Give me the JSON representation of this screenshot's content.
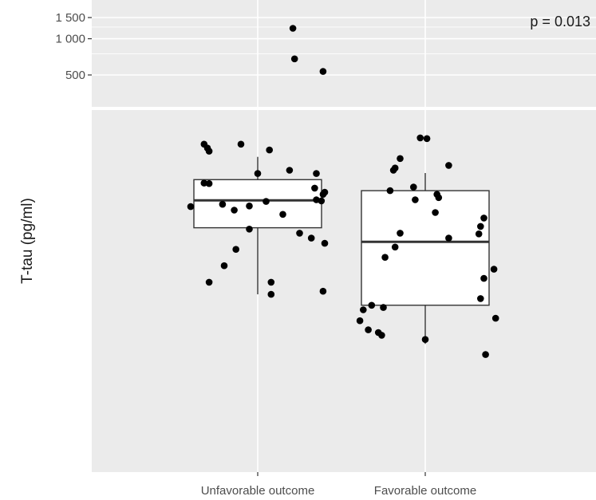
{
  "chart_data": {
    "type": "box",
    "title": "",
    "ylabel": "T-tau (pg/ml)",
    "xlabel": "",
    "categories": [
      "Unfavorable outcome",
      "Favorable outcome"
    ],
    "annotation": "p = 0.013",
    "y_scale": "log",
    "y_ticks": [
      500,
      1000,
      1500
    ],
    "y_tick_labels": [
      "500",
      "1 000",
      "1 500"
    ],
    "colors": {
      "panel": "#ebebeb",
      "grid": "#ffffff",
      "box_fill": "#ffffff",
      "box_line": "#333333",
      "points": "#000000"
    },
    "boxes": [
      {
        "category": "Unfavorable outcome",
        "lower_whisker": 140,
        "q1": 220,
        "median": 265,
        "q3": 305,
        "upper_whisker": 356
      },
      {
        "category": "Favorable outcome",
        "lower_whisker": 100,
        "q1": 130,
        "median": 200,
        "q3": 283,
        "upper_whisker": 319
      }
    ],
    "points": [
      {
        "category": "Unfavorable outcome",
        "y": 1220,
        "jitter": 0.21
      },
      {
        "category": "Unfavorable outcome",
        "y": 680,
        "jitter": 0.22
      },
      {
        "category": "Unfavorable outcome",
        "y": 535,
        "jitter": 0.39
      },
      {
        "category": "Unfavorable outcome",
        "y": 388,
        "jitter": -0.32
      },
      {
        "category": "Unfavorable outcome",
        "y": 378,
        "jitter": -0.3
      },
      {
        "category": "Unfavorable outcome",
        "y": 370,
        "jitter": -0.29
      },
      {
        "category": "Unfavorable outcome",
        "y": 388,
        "jitter": -0.1
      },
      {
        "category": "Unfavorable outcome",
        "y": 373,
        "jitter": 0.07
      },
      {
        "category": "Unfavorable outcome",
        "y": 325,
        "jitter": 0.19
      },
      {
        "category": "Unfavorable outcome",
        "y": 318,
        "jitter": 0.0
      },
      {
        "category": "Unfavorable outcome",
        "y": 298,
        "jitter": -0.32
      },
      {
        "category": "Unfavorable outcome",
        "y": 297,
        "jitter": -0.29
      },
      {
        "category": "Unfavorable outcome",
        "y": 318,
        "jitter": 0.35
      },
      {
        "category": "Unfavorable outcome",
        "y": 288,
        "jitter": 0.34
      },
      {
        "category": "Unfavorable outcome",
        "y": 280,
        "jitter": 0.4
      },
      {
        "category": "Unfavorable outcome",
        "y": 276,
        "jitter": 0.39
      },
      {
        "category": "Unfavorable outcome",
        "y": 266,
        "jitter": 0.35
      },
      {
        "category": "Unfavorable outcome",
        "y": 264,
        "jitter": 0.38
      },
      {
        "category": "Unfavorable outcome",
        "y": 263,
        "jitter": 0.05
      },
      {
        "category": "Unfavorable outcome",
        "y": 258,
        "jitter": -0.21
      },
      {
        "category": "Unfavorable outcome",
        "y": 255,
        "jitter": -0.05
      },
      {
        "category": "Unfavorable outcome",
        "y": 254,
        "jitter": -0.4
      },
      {
        "category": "Unfavorable outcome",
        "y": 248,
        "jitter": -0.14
      },
      {
        "category": "Unfavorable outcome",
        "y": 241,
        "jitter": 0.15
      },
      {
        "category": "Unfavorable outcome",
        "y": 218,
        "jitter": -0.05
      },
      {
        "category": "Unfavorable outcome",
        "y": 212,
        "jitter": 0.25
      },
      {
        "category": "Unfavorable outcome",
        "y": 205,
        "jitter": 0.32
      },
      {
        "category": "Unfavorable outcome",
        "y": 198,
        "jitter": 0.4
      },
      {
        "category": "Unfavorable outcome",
        "y": 190,
        "jitter": -0.13
      },
      {
        "category": "Unfavorable outcome",
        "y": 170,
        "jitter": -0.2
      },
      {
        "category": "Unfavorable outcome",
        "y": 152,
        "jitter": -0.29
      },
      {
        "category": "Unfavorable outcome",
        "y": 152,
        "jitter": 0.08
      },
      {
        "category": "Unfavorable outcome",
        "y": 143,
        "jitter": 0.39
      },
      {
        "category": "Unfavorable outcome",
        "y": 140,
        "jitter": 0.08
      },
      {
        "category": "Favorable outcome",
        "y": 405,
        "jitter": -0.03
      },
      {
        "category": "Favorable outcome",
        "y": 403,
        "jitter": 0.01
      },
      {
        "category": "Favorable outcome",
        "y": 352,
        "jitter": -0.15
      },
      {
        "category": "Favorable outcome",
        "y": 336,
        "jitter": 0.14
      },
      {
        "category": "Favorable outcome",
        "y": 330,
        "jitter": -0.18
      },
      {
        "category": "Favorable outcome",
        "y": 325,
        "jitter": -0.19
      },
      {
        "category": "Favorable outcome",
        "y": 290,
        "jitter": -0.07
      },
      {
        "category": "Favorable outcome",
        "y": 283,
        "jitter": -0.21
      },
      {
        "category": "Favorable outcome",
        "y": 276,
        "jitter": 0.07
      },
      {
        "category": "Favorable outcome",
        "y": 270,
        "jitter": 0.08
      },
      {
        "category": "Favorable outcome",
        "y": 266,
        "jitter": -0.06
      },
      {
        "category": "Favorable outcome",
        "y": 244,
        "jitter": 0.06
      },
      {
        "category": "Favorable outcome",
        "y": 235,
        "jitter": 0.35
      },
      {
        "category": "Favorable outcome",
        "y": 222,
        "jitter": 0.33
      },
      {
        "category": "Favorable outcome",
        "y": 212,
        "jitter": -0.15
      },
      {
        "category": "Favorable outcome",
        "y": 211,
        "jitter": 0.32
      },
      {
        "category": "Favorable outcome",
        "y": 205,
        "jitter": 0.14
      },
      {
        "category": "Favorable outcome",
        "y": 193,
        "jitter": -0.18
      },
      {
        "category": "Favorable outcome",
        "y": 180,
        "jitter": -0.24
      },
      {
        "category": "Favorable outcome",
        "y": 166,
        "jitter": 0.41
      },
      {
        "category": "Favorable outcome",
        "y": 156,
        "jitter": 0.35
      },
      {
        "category": "Favorable outcome",
        "y": 136,
        "jitter": 0.33
      },
      {
        "category": "Favorable outcome",
        "y": 130,
        "jitter": -0.32
      },
      {
        "category": "Favorable outcome",
        "y": 128,
        "jitter": -0.25
      },
      {
        "category": "Favorable outcome",
        "y": 126,
        "jitter": -0.37
      },
      {
        "category": "Favorable outcome",
        "y": 119,
        "jitter": 0.42
      },
      {
        "category": "Favorable outcome",
        "y": 117,
        "jitter": -0.39
      },
      {
        "category": "Favorable outcome",
        "y": 110,
        "jitter": -0.34
      },
      {
        "category": "Favorable outcome",
        "y": 108,
        "jitter": -0.28
      },
      {
        "category": "Favorable outcome",
        "y": 106,
        "jitter": -0.26
      },
      {
        "category": "Favorable outcome",
        "y": 103,
        "jitter": 0.0
      },
      {
        "category": "Favorable outcome",
        "y": 93,
        "jitter": 0.36
      }
    ]
  }
}
